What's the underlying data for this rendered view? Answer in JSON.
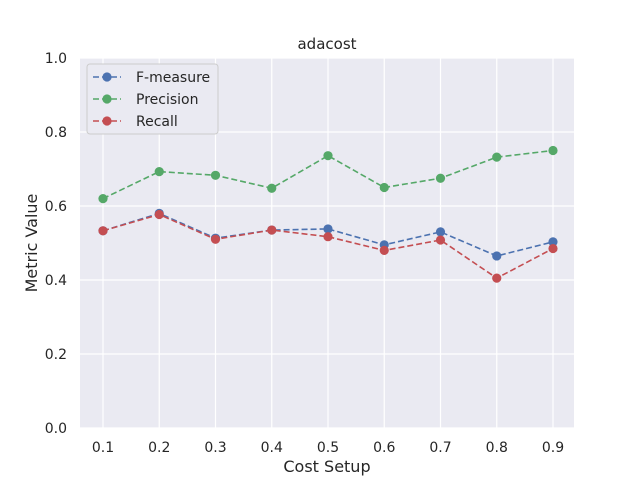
{
  "chart_data": {
    "type": "line",
    "title": "adacost",
    "xlabel": "Cost Setup",
    "ylabel": "Metric Value",
    "x": [
      0.1,
      0.2,
      0.3,
      0.4,
      0.5,
      0.6,
      0.7,
      0.8,
      0.9
    ],
    "x_tick_labels": [
      "0.1",
      "0.2",
      "0.3",
      "0.4",
      "0.5",
      "0.6",
      "0.7",
      "0.8",
      "0.9"
    ],
    "y_tick_labels": [
      "0.0",
      "0.2",
      "0.4",
      "0.6",
      "0.8",
      "1.0"
    ],
    "ylim": [
      0,
      1.0
    ],
    "grid": true,
    "legend_position": "top-left",
    "series": [
      {
        "name": "F-measure",
        "color": "#4c72b0",
        "values": [
          0.533,
          0.58,
          0.513,
          0.535,
          0.538,
          0.495,
          0.53,
          0.465,
          0.503
        ]
      },
      {
        "name": "Precision",
        "color": "#55a868",
        "values": [
          0.62,
          0.693,
          0.683,
          0.648,
          0.736,
          0.65,
          0.675,
          0.732,
          0.75
        ]
      },
      {
        "name": "Recall",
        "color": "#c44e52",
        "values": [
          0.533,
          0.577,
          0.51,
          0.535,
          0.517,
          0.48,
          0.508,
          0.405,
          0.485
        ]
      }
    ]
  }
}
